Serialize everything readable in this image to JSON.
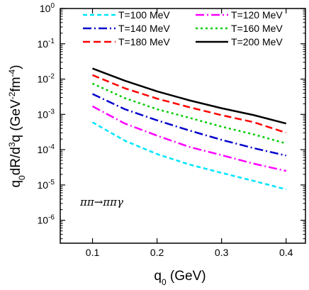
{
  "chart_data": {
    "type": "line",
    "xlabel": "q_0 (GeV)",
    "ylabel": "q_0dR/d^3q (GeV^-2fm^-4)",
    "x_ticks": [
      "0.1",
      "0.2",
      "0.3",
      "0.4"
    ],
    "y_ticks": [
      "-6",
      "-5",
      "-4",
      "-3",
      "-2",
      "-1",
      "0"
    ],
    "y_scale": "log",
    "xlim": [
      0.05,
      0.43
    ],
    "ylim": [
      2e-07,
      1
    ],
    "annotation": "ππ→ππγ",
    "legend_position": "top",
    "x": [
      0.1,
      0.15,
      0.2,
      0.25,
      0.3,
      0.35,
      0.4
    ],
    "series": [
      {
        "name": "T=100 MeV",
        "color": "#00e5ff",
        "dash": "6,4",
        "values": [
          0.0006,
          0.00018,
          7.5e-05,
          3.8e-05,
          2.2e-05,
          1.3e-05,
          7.5e-06
        ]
      },
      {
        "name": "T=120 MeV",
        "color": "#ff00ff",
        "dash": "12,4,2,4",
        "values": [
          0.0017,
          0.00055,
          0.00025,
          0.00012,
          7e-05,
          4e-05,
          2.5e-05
        ]
      },
      {
        "name": "T=140 MeV",
        "color": "#0000cc",
        "dash": "12,4,2,4",
        "values": [
          0.0038,
          0.0014,
          0.00068,
          0.00035,
          0.00019,
          0.00011,
          6.8e-05
        ]
      },
      {
        "name": "T=160 MeV",
        "color": "#00cc00",
        "dash": "3,4",
        "values": [
          0.0075,
          0.0029,
          0.0014,
          0.0008,
          0.00045,
          0.00027,
          0.00015
        ]
      },
      {
        "name": "T=180 MeV",
        "color": "#ff0000",
        "dash": "10,5",
        "values": [
          0.013,
          0.0055,
          0.0028,
          0.0016,
          0.00095,
          0.0006,
          0.0003
        ]
      },
      {
        "name": "T=200 MeV",
        "color": "#000000",
        "dash": "",
        "values": [
          0.02,
          0.009,
          0.0045,
          0.0025,
          0.0015,
          0.00095,
          0.00055
        ]
      }
    ]
  }
}
